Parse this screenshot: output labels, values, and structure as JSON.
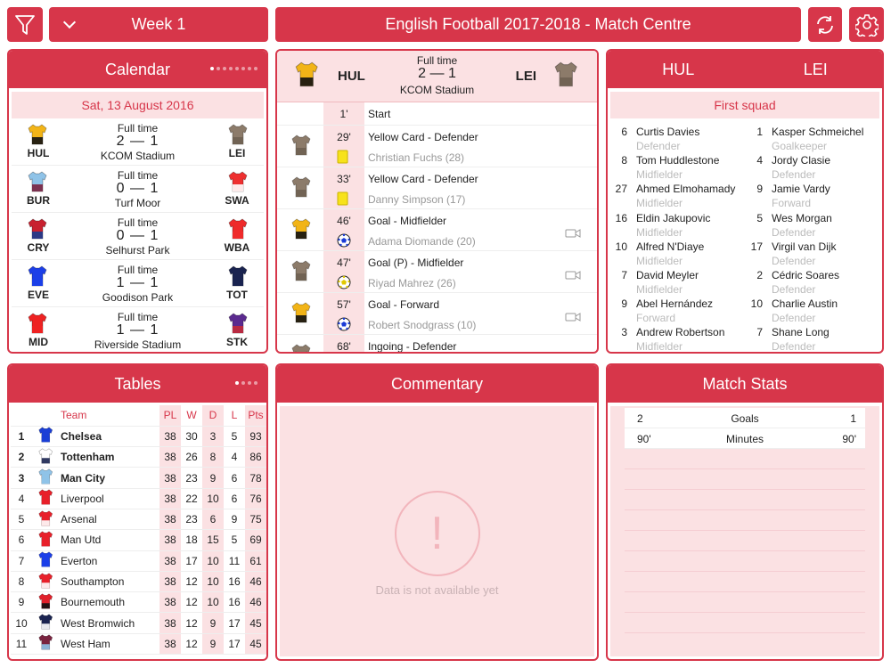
{
  "topbar": {
    "week_label": "Week 1",
    "title": "English Football 2017-2018 - Match Centre",
    "filter_icon": "filter-icon",
    "refresh_icon": "refresh-icon",
    "settings_icon": "gear-icon"
  },
  "colors": {
    "accent": "#d7364a",
    "tint": "#fbe1e3"
  },
  "calendar": {
    "title": "Calendar",
    "date": "Sat, 13 August 2016",
    "matches": [
      {
        "home": "HUL",
        "away": "LEI",
        "status": "Full time",
        "score": "2 — 1",
        "venue": "KCOM Stadium",
        "home_kit": [
          "#f2b417",
          "#111111"
        ],
        "away_kit": [
          "#8c7b6a",
          "#6e6152"
        ]
      },
      {
        "home": "BUR",
        "away": "SWA",
        "status": "Full time",
        "score": "0 — 1",
        "venue": "Turf Moor",
        "home_kit": [
          "#8fc3e8",
          "#7a2440"
        ],
        "away_kit": [
          "#ee3030",
          "#ffffff"
        ]
      },
      {
        "home": "CRY",
        "away": "WBA",
        "status": "Full time",
        "score": "0 — 1",
        "venue": "Selhurst Park",
        "home_kit": [
          "#c8202f",
          "#1b3c8f"
        ],
        "away_kit": [
          "#ee2a2a",
          "#ee2a2a"
        ]
      },
      {
        "home": "EVE",
        "away": "TOT",
        "status": "Full time",
        "score": "1 — 1",
        "venue": "Goodison Park",
        "home_kit": [
          "#1c3fe8",
          "#1c3fe8"
        ],
        "away_kit": [
          "#1a2350",
          "#1a2350"
        ]
      },
      {
        "home": "MID",
        "away": "STK",
        "status": "Full time",
        "score": "1 — 1",
        "venue": "Riverside Stadium",
        "home_kit": [
          "#ee2222",
          "#ee2222"
        ],
        "away_kit": [
          "#5b2a8f",
          "#c32a3a"
        ]
      }
    ]
  },
  "match": {
    "home": "HUL",
    "away": "LEI",
    "status": "Full time",
    "score": "2 — 1",
    "venue": "KCOM Stadium",
    "events": [
      {
        "minute": "1'",
        "title": "Start",
        "player": "",
        "kit": "",
        "icon": "",
        "video": false
      },
      {
        "minute": "29'",
        "title": "Yellow Card - Defender",
        "player": "Christian Fuchs (28)",
        "kit": "away",
        "icon": "yellow-card",
        "video": false
      },
      {
        "minute": "33'",
        "title": "Yellow Card - Defender",
        "player": "Danny Simpson (17)",
        "kit": "away",
        "icon": "yellow-card",
        "video": false
      },
      {
        "minute": "46'",
        "title": "Goal - Midfielder",
        "player": "Adama Diomande (20)",
        "kit": "home",
        "icon": "ball",
        "video": true
      },
      {
        "minute": "47'",
        "title": "Goal (P) - Midfielder",
        "player": "Riyad Mahrez (26)",
        "kit": "away",
        "icon": "penalty-ball",
        "video": true
      },
      {
        "minute": "57'",
        "title": "Goal - Forward",
        "player": "Robert Snodgrass (10)",
        "kit": "home",
        "icon": "ball",
        "video": true
      },
      {
        "minute": "68'",
        "title": "Ingoing - Defender",
        "player": "",
        "kit": "away",
        "icon": "",
        "video": false
      }
    ]
  },
  "lineup": {
    "home": "HUL",
    "away": "LEI",
    "section": "First squad",
    "rows": [
      {
        "hn": "6",
        "hname": "Curtis Davies",
        "hpos": "Defender",
        "an": "1",
        "aname": "Kasper Schmeichel",
        "apos": "Goalkeeper"
      },
      {
        "hn": "8",
        "hname": "Tom Huddlestone",
        "hpos": "Midfielder",
        "an": "4",
        "aname": "Jordy Clasie",
        "apos": "Defender"
      },
      {
        "hn": "27",
        "hname": "Ahmed Elmohamady",
        "hpos": "Midfielder",
        "an": "9",
        "aname": "Jamie Vardy",
        "apos": "Forward"
      },
      {
        "hn": "16",
        "hname": "Eldin Jakupovic",
        "hpos": "Midfielder",
        "an": "5",
        "aname": "Wes Morgan",
        "apos": "Defender"
      },
      {
        "hn": "10",
        "hname": "Alfred N'Diaye",
        "hpos": "Midfielder",
        "an": "17",
        "aname": "Virgil van Dijk",
        "apos": "Defender"
      },
      {
        "hn": "7",
        "hname": "David Meyler",
        "hpos": "Midfielder",
        "an": "2",
        "aname": "Cédric Soares",
        "apos": "Defender"
      },
      {
        "hn": "9",
        "hname": "Abel Hernández",
        "hpos": "Forward",
        "an": "10",
        "aname": "Charlie Austin",
        "apos": "Defender"
      },
      {
        "hn": "3",
        "hname": "Andrew Robertson",
        "hpos": "Midfielder",
        "an": "7",
        "aname": "Shane Long",
        "apos": "Defender"
      }
    ]
  },
  "tables": {
    "title": "Tables",
    "headers": {
      "team": "Team",
      "pl": "PL",
      "w": "W",
      "d": "D",
      "l": "L",
      "pts": "Pts"
    },
    "rows": [
      {
        "pos": "1",
        "team": "Chelsea",
        "pl": "38",
        "w": "30",
        "d": "3",
        "l": "5",
        "pts": "93",
        "kit": [
          "#1b3fd6",
          "#1b3fd6"
        ],
        "bold": true
      },
      {
        "pos": "2",
        "team": "Tottenham",
        "pl": "38",
        "w": "26",
        "d": "8",
        "l": "4",
        "pts": "86",
        "kit": [
          "#ffffff",
          "#1a2350"
        ],
        "bold": true
      },
      {
        "pos": "3",
        "team": "Man City",
        "pl": "38",
        "w": "23",
        "d": "9",
        "l": "6",
        "pts": "78",
        "kit": [
          "#8fc3e8",
          "#8fc3e8"
        ],
        "bold": true
      },
      {
        "pos": "4",
        "team": "Liverpool",
        "pl": "38",
        "w": "22",
        "d": "10",
        "l": "6",
        "pts": "76",
        "kit": [
          "#e8202a",
          "#e8202a"
        ],
        "bold": false
      },
      {
        "pos": "5",
        "team": "Arsenal",
        "pl": "38",
        "w": "23",
        "d": "6",
        "l": "9",
        "pts": "75",
        "kit": [
          "#e8202a",
          "#ffffff"
        ],
        "bold": false
      },
      {
        "pos": "6",
        "team": "Man Utd",
        "pl": "38",
        "w": "18",
        "d": "15",
        "l": "5",
        "pts": "69",
        "kit": [
          "#e8202a",
          "#e8202a"
        ],
        "bold": false
      },
      {
        "pos": "7",
        "team": "Everton",
        "pl": "38",
        "w": "17",
        "d": "10",
        "l": "11",
        "pts": "61",
        "kit": [
          "#1c3fe8",
          "#1c3fe8"
        ],
        "bold": false
      },
      {
        "pos": "8",
        "team": "Southampton",
        "pl": "38",
        "w": "12",
        "d": "10",
        "l": "16",
        "pts": "46",
        "kit": [
          "#e8202a",
          "#ffffff"
        ],
        "bold": false
      },
      {
        "pos": "9",
        "team": "Bournemouth",
        "pl": "38",
        "w": "12",
        "d": "10",
        "l": "16",
        "pts": "46",
        "kit": [
          "#e0202a",
          "#111111"
        ],
        "bold": false
      },
      {
        "pos": "10",
        "team": "West Bromwich",
        "pl": "38",
        "w": "12",
        "d": "9",
        "l": "17",
        "pts": "45",
        "kit": [
          "#1a2350",
          "#ffffff"
        ],
        "bold": false
      },
      {
        "pos": "11",
        "team": "West Ham",
        "pl": "38",
        "w": "12",
        "d": "9",
        "l": "17",
        "pts": "45",
        "kit": [
          "#7a2440",
          "#8fc3e8"
        ],
        "bold": false
      }
    ]
  },
  "commentary": {
    "title": "Commentary",
    "empty_message": "Data is not available yet"
  },
  "stats": {
    "title": "Match Stats",
    "rows": [
      {
        "home": "2",
        "label": "Goals",
        "away": "1"
      },
      {
        "home": "90'",
        "label": "Minutes",
        "away": "90'"
      }
    ]
  }
}
